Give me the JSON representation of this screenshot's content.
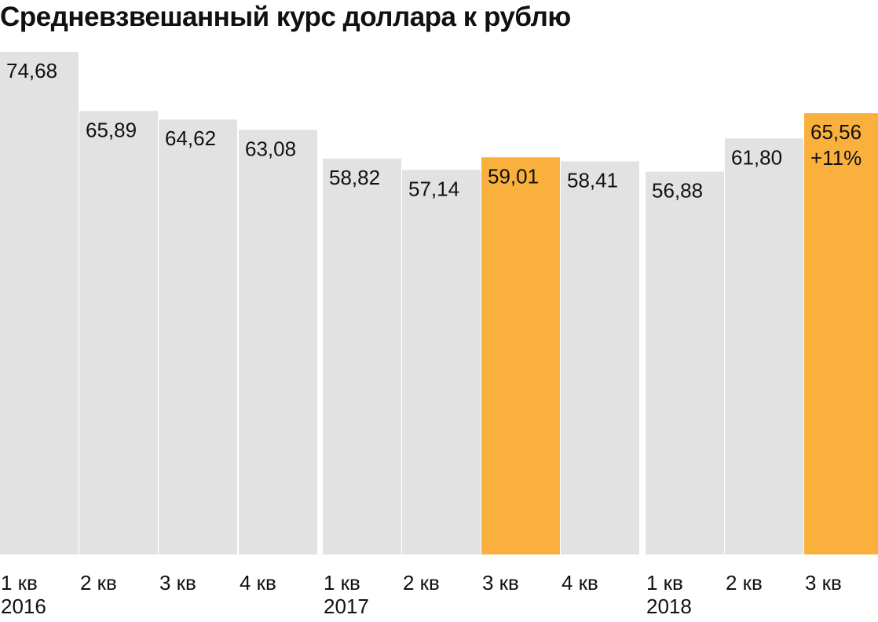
{
  "chart_data": {
    "type": "bar",
    "title": "Средневзвешанный курс доллара к рублю",
    "xlabel": "",
    "ylabel": "",
    "ylim": [
      0,
      74.68
    ],
    "grid": false,
    "legend": "none",
    "colors": {
      "default": "#e2e2e2",
      "highlight": "#f9b03c"
    },
    "categories": [
      {
        "quarter": "1 кв",
        "year": "2016"
      },
      {
        "quarter": "2 кв",
        "year": ""
      },
      {
        "quarter": "3 кв",
        "year": ""
      },
      {
        "quarter": "4 кв",
        "year": ""
      },
      {
        "quarter": "1 кв",
        "year": "2017"
      },
      {
        "quarter": "2 кв",
        "year": ""
      },
      {
        "quarter": "3 кв",
        "year": ""
      },
      {
        "quarter": "4 кв",
        "year": ""
      },
      {
        "quarter": "1 кв",
        "year": "2018"
      },
      {
        "quarter": "2 кв",
        "year": ""
      },
      {
        "quarter": "3 кв",
        "year": ""
      }
    ],
    "values": [
      74.68,
      65.89,
      64.62,
      63.08,
      58.82,
      57.14,
      59.01,
      58.41,
      56.88,
      61.8,
      65.56
    ],
    "value_labels": [
      "74,68",
      "65,89",
      "64,62",
      "63,08",
      "58,82",
      "57,14",
      "59,01",
      "58,41",
      "56,88",
      "61,80",
      "65,56"
    ],
    "highlighted": [
      false,
      false,
      false,
      false,
      false,
      false,
      true,
      false,
      false,
      false,
      true
    ],
    "annotations": [
      {
        "index": 10,
        "text": "+11%"
      }
    ],
    "year_groups": [
      {
        "start": 0,
        "end": 3
      },
      {
        "start": 4,
        "end": 7
      },
      {
        "start": 8,
        "end": 10
      }
    ]
  }
}
